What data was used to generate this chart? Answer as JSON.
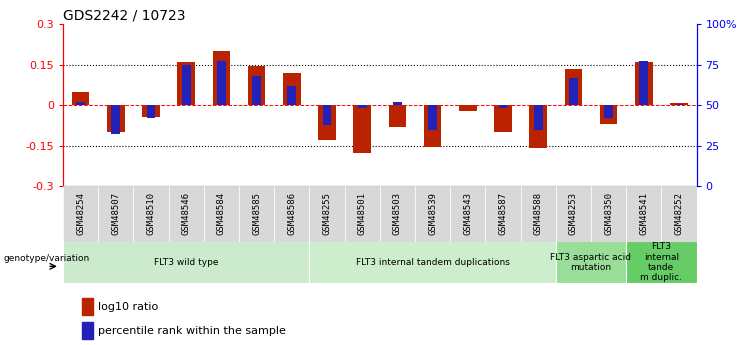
{
  "title": "GDS2242 / 10723",
  "samples": [
    "GSM48254",
    "GSM48507",
    "GSM48510",
    "GSM48546",
    "GSM48584",
    "GSM48585",
    "GSM48586",
    "GSM48255",
    "GSM48501",
    "GSM48503",
    "GSM48539",
    "GSM48543",
    "GSM48587",
    "GSM48588",
    "GSM48253",
    "GSM48350",
    "GSM48541",
    "GSM48252"
  ],
  "log10_ratio": [
    0.05,
    -0.1,
    -0.045,
    0.16,
    0.2,
    0.145,
    0.12,
    -0.13,
    -0.175,
    -0.08,
    -0.155,
    -0.02,
    -0.1,
    -0.16,
    0.135,
    -0.07,
    0.16,
    0.01
  ],
  "percentile_rank": [
    52,
    32,
    42,
    75,
    77,
    68,
    62,
    38,
    48,
    52,
    35,
    50,
    48,
    35,
    67,
    42,
    77,
    51
  ],
  "groups": [
    {
      "label": "FLT3 wild type",
      "start": 0,
      "end": 6,
      "color": "#cceacc"
    },
    {
      "label": "FLT3 internal tandem duplications",
      "start": 7,
      "end": 13,
      "color": "#cceecc"
    },
    {
      "label": "FLT3 aspartic acid\nmutation",
      "start": 14,
      "end": 15,
      "color": "#99dd99"
    },
    {
      "label": "FLT3\ninternal\ntande\nm duplic.",
      "start": 16,
      "end": 17,
      "color": "#66cc66"
    }
  ],
  "ylim": [
    -0.3,
    0.3
  ],
  "yticks_left": [
    -0.3,
    -0.15,
    0.0,
    0.15,
    0.3
  ],
  "ytick_labels_left": [
    "-0.3",
    "-0.15",
    "0",
    "0.15",
    "0.3"
  ],
  "yticks_right": [
    0,
    25,
    50,
    75,
    100
  ],
  "ytick_labels_right": [
    "0",
    "25",
    "50",
    "75",
    "100%"
  ],
  "bar_color_red": "#bb2200",
  "bar_color_blue": "#2222bb",
  "bar_width": 0.5,
  "blue_bar_width": 0.25
}
